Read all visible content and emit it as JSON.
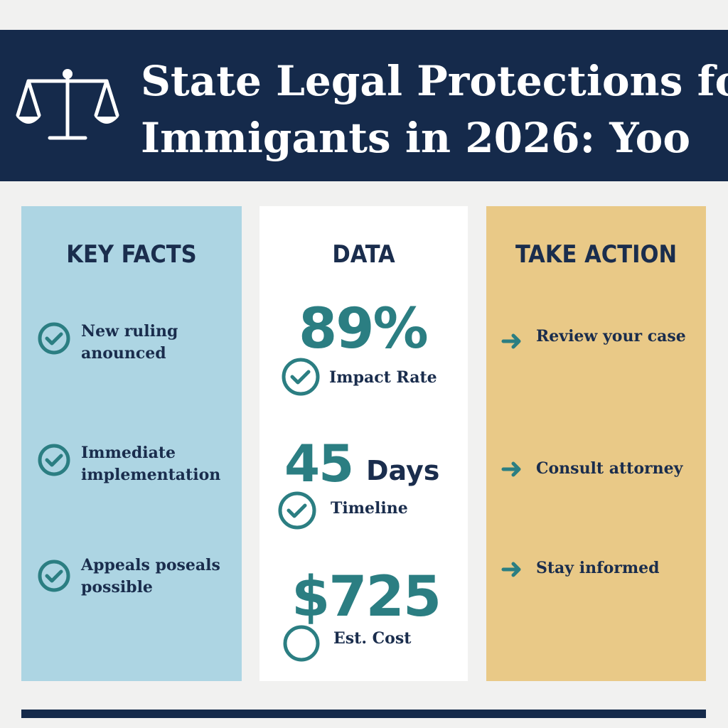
{
  "header": {
    "title_lines": [
      "State Legal Protections fo",
      "Immigants in 2026: Yoo"
    ]
  },
  "columns": [
    {
      "heading": "KEY FACTS",
      "items": [
        "New ruling anounced",
        "Immediate implementation",
        "Appeals poseals possible"
      ]
    },
    {
      "heading": "DATA",
      "stats": [
        {
          "value": "89%",
          "label": "Impact Rate"
        },
        {
          "value": "45",
          "unit": "Days",
          "label": "Timeline"
        },
        {
          "value": "$725",
          "label": "Est. Cost"
        }
      ]
    },
    {
      "heading": "TAKE ACTION",
      "items": [
        "Review your case",
        "Consult attorney",
        "Stay informed"
      ]
    }
  ]
}
